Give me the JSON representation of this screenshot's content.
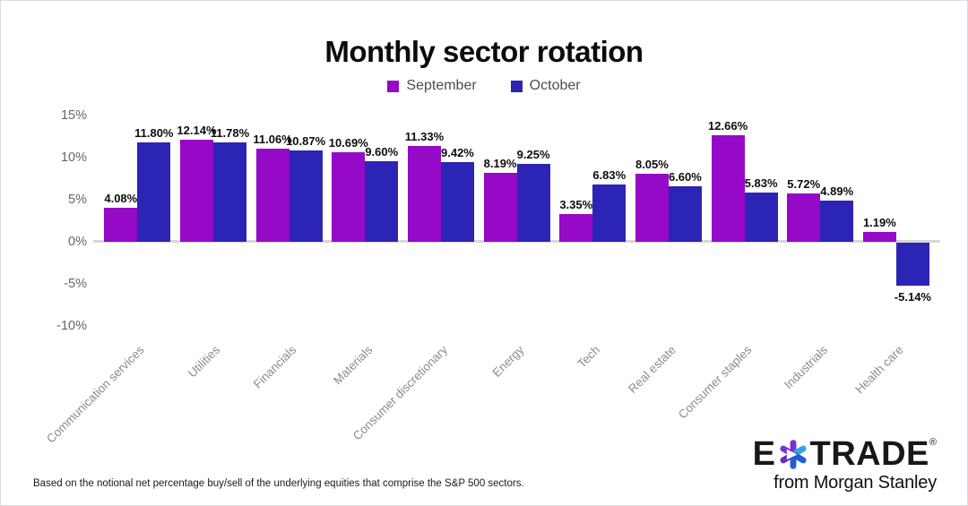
{
  "title": "Monthly sector rotation",
  "chart_data": {
    "type": "bar",
    "title": "Monthly sector rotation",
    "categories": [
      "Communication services",
      "Utilities",
      "Financials",
      "Materials",
      "Consumer discretionary",
      "Energy",
      "Tech",
      "Real estate",
      "Consumer staples",
      "Industrials",
      "Health care"
    ],
    "series": [
      {
        "name": "September",
        "color": "#9609C6",
        "values": [
          4.08,
          12.14,
          11.06,
          10.69,
          11.33,
          8.19,
          3.35,
          8.05,
          12.66,
          5.72,
          1.19
        ]
      },
      {
        "name": "October",
        "color": "#2C24B5",
        "values": [
          11.8,
          11.78,
          10.87,
          9.6,
          9.42,
          9.25,
          6.83,
          6.6,
          5.83,
          4.89,
          -5.14
        ]
      }
    ],
    "y_ticks": [
      {
        "label": "15%",
        "value": 15
      },
      {
        "label": "10%",
        "value": 10
      },
      {
        "label": "5%",
        "value": 5
      },
      {
        "label": "0%",
        "value": 0
      },
      {
        "label": "-5%",
        "value": -5
      },
      {
        "label": "-10%",
        "value": -10
      }
    ],
    "ylim": [
      -10,
      15
    ],
    "grid": false,
    "legend_position": "top",
    "value_label_suffix": "%"
  },
  "footnote": "Based on the notional net percentage buy/sell of the underlying equities that comprise the S&P 500 sectors.",
  "branding": {
    "logo_prefix": "E",
    "logo_suffix": "TRADE",
    "registered_mark": "®",
    "tagline": "from Morgan Stanley",
    "asterisk_colors": {
      "purple": "#7B2FD6",
      "purple_dark": "#6A2BC0",
      "blue_light": "#2EA7E0",
      "blue_dark": "#1E5FD2"
    }
  }
}
